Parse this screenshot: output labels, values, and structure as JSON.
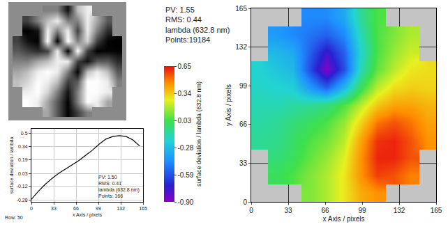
{
  "chart_data": [
    {
      "type": "heatmap",
      "tick_labels": false,
      "cells": [
        [
          null,
          null,
          null,
          0.5,
          0.5,
          0.07,
          0.75,
          0.93,
          null,
          null,
          null
        ],
        [
          null,
          0.25,
          0.5,
          0.75,
          0.93,
          0.5,
          0.5,
          0.93,
          0.65,
          0.35,
          null
        ],
        [
          null,
          0,
          0.07,
          0.93,
          0.5,
          0.93,
          0.25,
          0.93,
          0.5,
          0.17,
          null
        ],
        [
          0.25,
          0.07,
          0,
          1,
          0.01,
          1,
          0.5,
          0.83,
          0.25,
          0.01,
          0
        ],
        [
          0.35,
          0.25,
          0.17,
          0.25,
          0.93,
          0,
          1,
          0.25,
          0,
          0.02,
          0.01
        ],
        [
          0.5,
          0.5,
          0.65,
          0.75,
          0.93,
          0.93,
          0.25,
          0.07,
          0.35,
          0.35,
          0.17
        ],
        [
          0.65,
          0.75,
          0.93,
          1,
          0.93,
          0.5,
          0.01,
          0.75,
          0.93,
          0.75,
          0.35
        ],
        [
          0.75,
          0.83,
          0.99,
          0.93,
          0.75,
          0.25,
          0.35,
          1,
          0.99,
          0.93,
          0.5
        ],
        [
          null,
          0.93,
          1,
          0.83,
          0.5,
          0.07,
          0.5,
          0.99,
          0.99,
          0.93,
          null
        ],
        [
          null,
          1,
          0.93,
          0.65,
          0.35,
          0.01,
          0.5,
          0.99,
          0.93,
          0.65,
          null
        ],
        [
          null,
          null,
          null,
          0.65,
          0.35,
          0.01,
          0.25,
          0.5,
          null,
          null,
          null
        ]
      ]
    },
    {
      "type": "line",
      "x_label": "x Axis / pixels",
      "y_label": "surface deviation / lambda",
      "annotations": [
        "PV: 1.50",
        "RMS: 0.41",
        "lambda (632.8 nm)",
        "Points: 166"
      ],
      "caption": "Row: 50",
      "x": [
        0,
        10,
        20,
        30,
        40,
        50,
        60,
        70,
        80,
        90,
        100,
        110,
        120,
        130,
        140,
        150,
        160
      ],
      "values": [
        -0.27,
        -0.18,
        -0.1,
        -0.03,
        0.03,
        0.08,
        0.13,
        0.18,
        0.24,
        0.3,
        0.37,
        0.43,
        0.46,
        0.47,
        0.46,
        0.42,
        0.35
      ],
      "color": "#000000",
      "xlim": [
        0,
        165
      ],
      "xticks": [
        0,
        33,
        66,
        99,
        132,
        165
      ],
      "ylim": [
        -0.3,
        0.55
      ],
      "yticks": [
        -0.28,
        -0.12,
        0.03,
        0.19,
        0.34,
        0.5
      ],
      "grid": true
    },
    {
      "type": "heatmap",
      "x_label": "x Axis / pixels",
      "y_label": "y Axis / pixels",
      "annotations": [
        "PV: 1.55",
        "RMS: 0.44",
        "lambda (632.8 nm)",
        "Points:19184"
      ],
      "x": [
        7.5,
        22.5,
        37.5,
        52.5,
        67.5,
        82.5,
        97.5,
        112.5,
        127.5,
        142.5,
        157.5
      ],
      "y": [
        7.5,
        22.5,
        37.5,
        52.5,
        67.5,
        82.5,
        97.5,
        112.5,
        127.5,
        142.5,
        157.5
      ],
      "cells": [
        [
          null,
          null,
          null,
          0.12,
          0.18,
          0.28,
          0.4,
          0.45,
          null,
          null,
          null
        ],
        [
          null,
          0.0,
          0.05,
          0.12,
          0.18,
          0.28,
          0.45,
          0.58,
          0.55,
          0.48,
          null
        ],
        [
          null,
          -0.05,
          0.0,
          0.08,
          0.15,
          0.25,
          0.45,
          0.62,
          0.62,
          0.55,
          null
        ],
        [
          -0.1,
          -0.08,
          -0.02,
          0.05,
          0.1,
          0.2,
          0.42,
          0.6,
          0.62,
          0.55,
          0.45
        ],
        [
          -0.12,
          -0.1,
          -0.05,
          0.0,
          0.05,
          0.15,
          0.32,
          0.5,
          0.55,
          0.5,
          0.42
        ],
        [
          -0.15,
          -0.15,
          -0.12,
          -0.1,
          -0.05,
          0.05,
          0.2,
          0.35,
          0.42,
          0.42,
          0.38
        ],
        [
          -0.18,
          -0.2,
          -0.22,
          -0.4,
          -0.55,
          -0.3,
          0.0,
          0.2,
          0.3,
          0.33,
          0.32
        ],
        [
          -0.2,
          -0.25,
          -0.3,
          -0.6,
          -0.88,
          -0.6,
          -0.15,
          0.08,
          0.2,
          0.28,
          0.3
        ],
        [
          null,
          -0.3,
          -0.35,
          -0.55,
          -0.75,
          -0.55,
          -0.2,
          0.05,
          0.15,
          0.22,
          null
        ],
        [
          null,
          -0.4,
          -0.45,
          -0.5,
          -0.55,
          -0.45,
          -0.15,
          0.05,
          0.12,
          0.18,
          null
        ],
        [
          null,
          null,
          null,
          -0.45,
          -0.45,
          -0.35,
          -0.1,
          0.05,
          null,
          null,
          null
        ]
      ],
      "xlim": [
        0,
        165
      ],
      "xticks": [
        0,
        33,
        66,
        99,
        132,
        165
      ],
      "ylim": [
        0,
        165
      ],
      "yticks": [
        0,
        33,
        66,
        99,
        132,
        165
      ],
      "grid": true,
      "colorbar": {
        "title": "surface deviation / lambda (632.8 nm)",
        "range": [
          -0.9,
          0.65
        ],
        "ticks": [
          0.65,
          0.34,
          0.03,
          -0.28,
          -0.59,
          {
            "value": -0.9,
            "label": "-0.90"
          }
        ]
      }
    }
  ]
}
